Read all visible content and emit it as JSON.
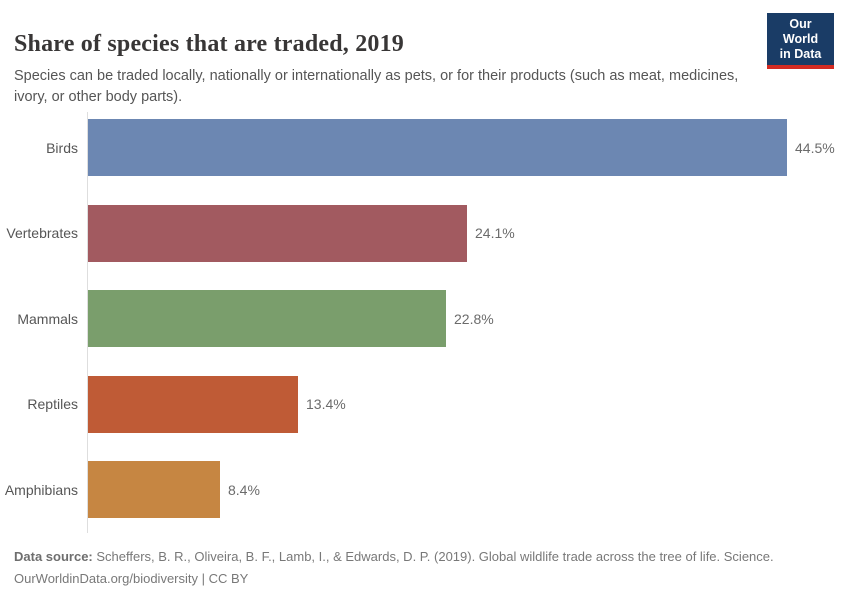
{
  "header": {
    "title": "Share of species that are traded, 2019",
    "subtitle": "Species can be traded locally, nationally or internationally as pets, or for their products (such as meat, medicines, ivory, or other body parts).",
    "logo": {
      "line1": "Our World",
      "line2": "in Data",
      "bg_color": "#1a3c66",
      "accent_color": "#d42b22"
    }
  },
  "chart_data": {
    "type": "bar",
    "orientation": "horizontal",
    "title": "Share of species that are traded, 2019",
    "categories": [
      "Birds",
      "Vertebrates",
      "Mammals",
      "Reptiles",
      "Amphibians"
    ],
    "values": [
      44.5,
      24.1,
      22.8,
      13.4,
      8.4
    ],
    "value_labels": [
      "44.5%",
      "24.1%",
      "22.8%",
      "13.4%",
      "8.4%"
    ],
    "colors": [
      "#6c87b2",
      "#a25a60",
      "#7a9e6c",
      "#bf5b36",
      "#c68642"
    ],
    "unit": "%",
    "xlim": [
      0,
      44.5
    ],
    "grid": false,
    "legend": "none",
    "axis_line_color": "#dedede"
  },
  "footer": {
    "source_label": "Data source:",
    "source_text": " Scheffers, B. R., Oliveira, B. F., Lamb, I., & Edwards, D. P. (2019). Global wildlife trade across the tree of life. Science.",
    "license_line": "OurWorldinData.org/biodiversity | CC BY"
  }
}
